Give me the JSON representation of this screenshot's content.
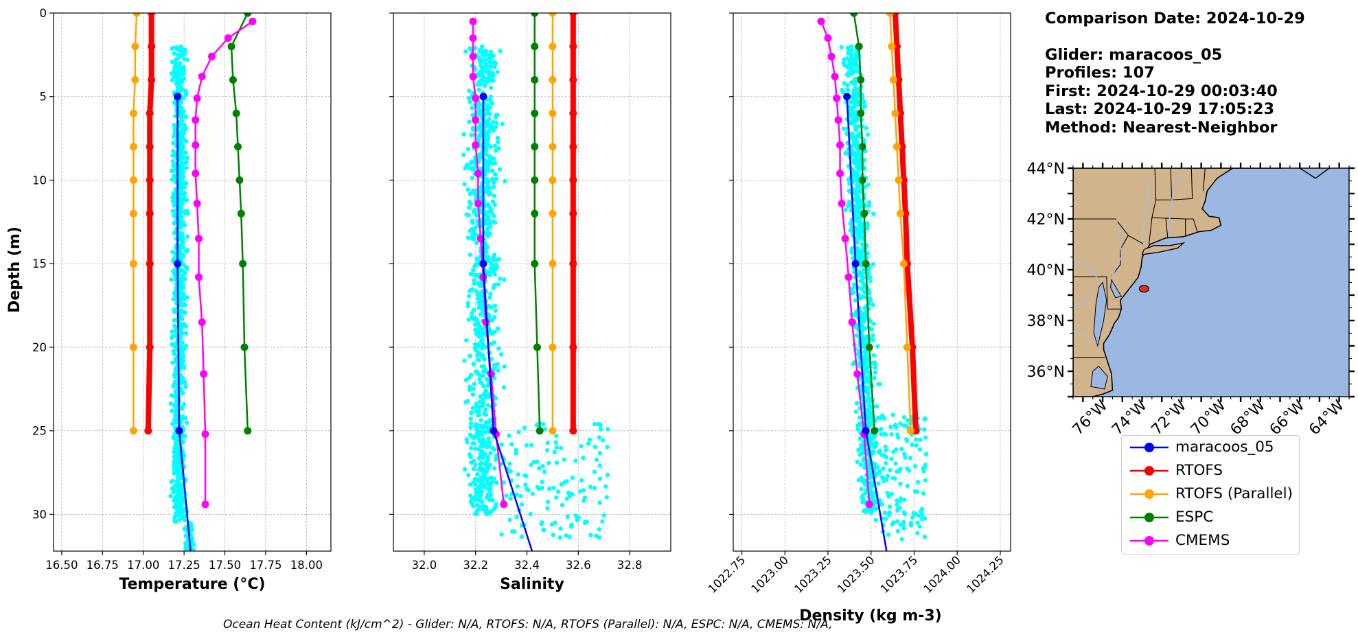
{
  "info": {
    "comparison": "Comparison Date: 2024-10-29",
    "glider": "Glider: maracoos_05",
    "profiles": "Profiles: 107",
    "first": "First: 2024-10-29 00:03:40",
    "last": "Last: 2024-10-29 17:05:23",
    "method": "Method: Nearest-Neighbor"
  },
  "footer": "Ocean Heat Content (kJ/cm^2) - Glider: N/A,  RTOFS: N/A,  RTOFS (Parallel): N/A,  ESPC: N/A,  CMEMS: N/A,",
  "colors": {
    "glider": "#0000ff",
    "rtofs": "#ff0000",
    "rtofs_parallel": "#ffa500",
    "espc": "#008000",
    "cmems": "#ff00ff",
    "scatter": "#00ffff",
    "land": "#d2b48c",
    "ocean": "#9ab8e2",
    "grid": "#b0b0b0"
  },
  "legend": [
    {
      "label": "maracoos_05",
      "color": "#0000ff"
    },
    {
      "label": "RTOFS",
      "color": "#ff0000"
    },
    {
      "label": "RTOFS (Parallel)",
      "color": "#ffa500"
    },
    {
      "label": "ESPC",
      "color": "#008000"
    },
    {
      "label": "CMEMS",
      "color": "#ff00ff"
    }
  ],
  "chart_data": [
    {
      "type": "line",
      "xlabel": "Temperature (°C)",
      "ylabel": "Depth (m)",
      "xlim": [
        16.45,
        18.15
      ],
      "ylim": [
        32.2,
        0
      ],
      "xticks": [
        16.5,
        16.75,
        17.0,
        17.25,
        17.5,
        17.75,
        18.0
      ],
      "xticklabels": [
        "16.50",
        "16.75",
        "17.00",
        "17.25",
        "17.50",
        "17.75",
        "18.00"
      ],
      "yticks": [
        0,
        5,
        10,
        15,
        20,
        25,
        30
      ],
      "yticklabels": [
        "0",
        "5",
        "10",
        "15",
        "20",
        "25",
        "30"
      ],
      "grid": true,
      "scatter": {
        "name": "glider profiles",
        "x_center": 17.22,
        "x_spread": 0.035,
        "depth_range": [
          2,
          30.5
        ],
        "extra_depth_range": [
          30.5,
          32.2
        ],
        "extra_x_center": 17.28
      },
      "series": [
        {
          "name": "maracoos_05",
          "depth": [
            5,
            15,
            25,
            32.2
          ],
          "values": [
            17.21,
            17.21,
            17.22,
            17.29
          ],
          "markers": [
            true,
            true,
            true,
            false
          ]
        },
        {
          "name": "RTOFS",
          "depth": [
            0,
            2,
            4,
            6,
            8,
            10,
            12,
            15,
            20,
            25
          ],
          "values": [
            17.05,
            17.05,
            17.05,
            17.04,
            17.04,
            17.04,
            17.04,
            17.04,
            17.04,
            17.03
          ],
          "markers": true
        },
        {
          "name": "RTOFS (Parallel)",
          "depth": [
            0,
            2,
            4,
            6,
            8,
            10,
            12,
            15,
            20,
            25
          ],
          "values": [
            16.96,
            16.95,
            16.95,
            16.94,
            16.94,
            16.94,
            16.94,
            16.94,
            16.94,
            16.94
          ],
          "markers": true
        },
        {
          "name": "ESPC",
          "depth": [
            0,
            2,
            4,
            6,
            8,
            10,
            12,
            15,
            20,
            25
          ],
          "values": [
            17.64,
            17.54,
            17.55,
            17.57,
            17.58,
            17.59,
            17.6,
            17.61,
            17.62,
            17.64
          ],
          "markers": true
        },
        {
          "name": "CMEMS",
          "depth": [
            0.5,
            1.5,
            2.6,
            3.8,
            5.1,
            6.4,
            7.9,
            9.6,
            11.4,
            13.5,
            15.8,
            18.5,
            21.6,
            25.2,
            29.4
          ],
          "values": [
            17.67,
            17.52,
            17.42,
            17.36,
            17.33,
            17.32,
            17.32,
            17.32,
            17.33,
            17.34,
            17.34,
            17.36,
            17.37,
            17.38,
            17.38
          ],
          "markers": true
        }
      ]
    },
    {
      "type": "line",
      "xlabel": "Salinity",
      "ylabel": "",
      "xlim": [
        31.88,
        32.96
      ],
      "ylim": [
        32.2,
        0
      ],
      "xticks": [
        32.0,
        32.2,
        32.4,
        32.6,
        32.8
      ],
      "xticklabels": [
        "32.0",
        "32.2",
        "32.4",
        "32.6",
        "32.8"
      ],
      "yticks": [
        0,
        5,
        10,
        15,
        20,
        25,
        30
      ],
      "grid": true,
      "scatter": {
        "name": "glider profiles",
        "x_center": 32.23,
        "x_spread": 0.05,
        "depth_range": [
          2,
          30
        ],
        "tail": {
          "depth_range": [
            24.5,
            31.5
          ],
          "x_range": [
            32.3,
            32.72
          ]
        }
      },
      "series": [
        {
          "name": "maracoos_05",
          "depth": [
            5,
            15,
            25,
            32.2
          ],
          "values": [
            32.23,
            32.23,
            32.27,
            32.42
          ],
          "markers": [
            true,
            true,
            true,
            false
          ]
        },
        {
          "name": "RTOFS",
          "depth": [
            0,
            2,
            4,
            6,
            8,
            10,
            12,
            15,
            20,
            25
          ],
          "values": [
            32.58,
            32.58,
            32.58,
            32.58,
            32.58,
            32.58,
            32.58,
            32.58,
            32.58,
            32.58
          ],
          "markers": true
        },
        {
          "name": "RTOFS (Parallel)",
          "depth": [
            0,
            2,
            4,
            6,
            8,
            10,
            12,
            15,
            20,
            25
          ],
          "values": [
            32.5,
            32.5,
            32.5,
            32.5,
            32.5,
            32.5,
            32.5,
            32.5,
            32.5,
            32.5
          ],
          "markers": true
        },
        {
          "name": "ESPC",
          "depth": [
            0,
            2,
            4,
            6,
            8,
            10,
            12,
            15,
            20,
            25
          ],
          "values": [
            32.43,
            32.43,
            32.43,
            32.43,
            32.43,
            32.43,
            32.43,
            32.43,
            32.44,
            32.45
          ],
          "markers": true
        },
        {
          "name": "CMEMS",
          "depth": [
            0.5,
            1.5,
            2.6,
            3.8,
            5.1,
            6.4,
            7.9,
            9.6,
            11.4,
            13.5,
            15.8,
            18.5,
            21.6,
            25.2,
            29.4
          ],
          "values": [
            32.19,
            32.19,
            32.19,
            32.19,
            32.2,
            32.2,
            32.2,
            32.21,
            32.21,
            32.22,
            32.23,
            32.24,
            32.26,
            32.28,
            32.31
          ],
          "markers": true
        }
      ]
    },
    {
      "type": "line",
      "xlabel": "Density (kg m-3)",
      "ylabel": "",
      "xlim": [
        1022.7,
        1024.31
      ],
      "ylim": [
        32.2,
        0
      ],
      "xticks": [
        1022.75,
        1023.0,
        1023.25,
        1023.5,
        1023.75,
        1024.0,
        1024.25
      ],
      "xticklabels": [
        "1022.75",
        "1023.00",
        "1023.25",
        "1023.50",
        "1023.75",
        "1024.00",
        "1024.25"
      ],
      "yticks": [
        0,
        5,
        10,
        15,
        20,
        25,
        30
      ],
      "grid": true,
      "scatter": {
        "name": "glider profiles",
        "x_center": 1023.38,
        "x_spread": 0.05,
        "depth_range": [
          2,
          30
        ],
        "tail": {
          "depth_range": [
            24,
            31.5
          ],
          "x_range": [
            1023.52,
            1023.82
          ]
        }
      },
      "series": [
        {
          "name": "maracoos_05",
          "depth": [
            5,
            15,
            25,
            32.2
          ],
          "values": [
            1023.36,
            1023.41,
            1023.47,
            1023.59
          ],
          "markers": [
            true,
            true,
            true,
            false
          ]
        },
        {
          "name": "RTOFS",
          "depth": [
            0,
            2,
            4,
            6,
            8,
            10,
            12,
            15,
            20,
            25
          ],
          "values": [
            1023.64,
            1023.65,
            1023.66,
            1023.67,
            1023.68,
            1023.69,
            1023.7,
            1023.71,
            1023.74,
            1023.76
          ],
          "markers": true
        },
        {
          "name": "RTOFS (Parallel)",
          "depth": [
            0,
            2,
            4,
            6,
            8,
            10,
            12,
            15,
            20,
            25
          ],
          "values": [
            1023.61,
            1023.62,
            1023.63,
            1023.64,
            1023.65,
            1023.66,
            1023.67,
            1023.69,
            1023.71,
            1023.73
          ],
          "markers": true
        },
        {
          "name": "ESPC",
          "depth": [
            0,
            2,
            4,
            6,
            8,
            10,
            12,
            15,
            20,
            25
          ],
          "values": [
            1023.4,
            1023.43,
            1023.44,
            1023.44,
            1023.45,
            1023.45,
            1023.46,
            1023.47,
            1023.49,
            1023.52
          ],
          "markers": true
        },
        {
          "name": "CMEMS",
          "depth": [
            0.5,
            1.5,
            2.6,
            3.8,
            5.1,
            6.4,
            7.9,
            9.6,
            11.4,
            13.5,
            15.8,
            18.5,
            21.6,
            25.2,
            29.4
          ],
          "values": [
            1023.21,
            1023.25,
            1023.27,
            1023.29,
            1023.3,
            1023.31,
            1023.32,
            1023.32,
            1023.33,
            1023.35,
            1023.37,
            1023.39,
            1023.42,
            1023.46,
            1023.49
          ],
          "markers": true
        }
      ]
    },
    {
      "type": "map",
      "lon_range": [
        -77.5,
        -63.5
      ],
      "lat_range": [
        35,
        44
      ],
      "yticklabels": [
        "44°N",
        "42°N",
        "40°N",
        "38°N",
        "36°N"
      ],
      "ytick_values": [
        44,
        42,
        40,
        38,
        36
      ],
      "xticklabels": [
        "76°W",
        "74°W",
        "72°W",
        "70°W",
        "68°W",
        "66°W",
        "64°W"
      ],
      "xtick_values": [
        -76,
        -74,
        -72,
        -70,
        -68,
        -66,
        -64
      ],
      "glider_location": {
        "lon": -73.9,
        "lat": 39.25
      }
    }
  ]
}
